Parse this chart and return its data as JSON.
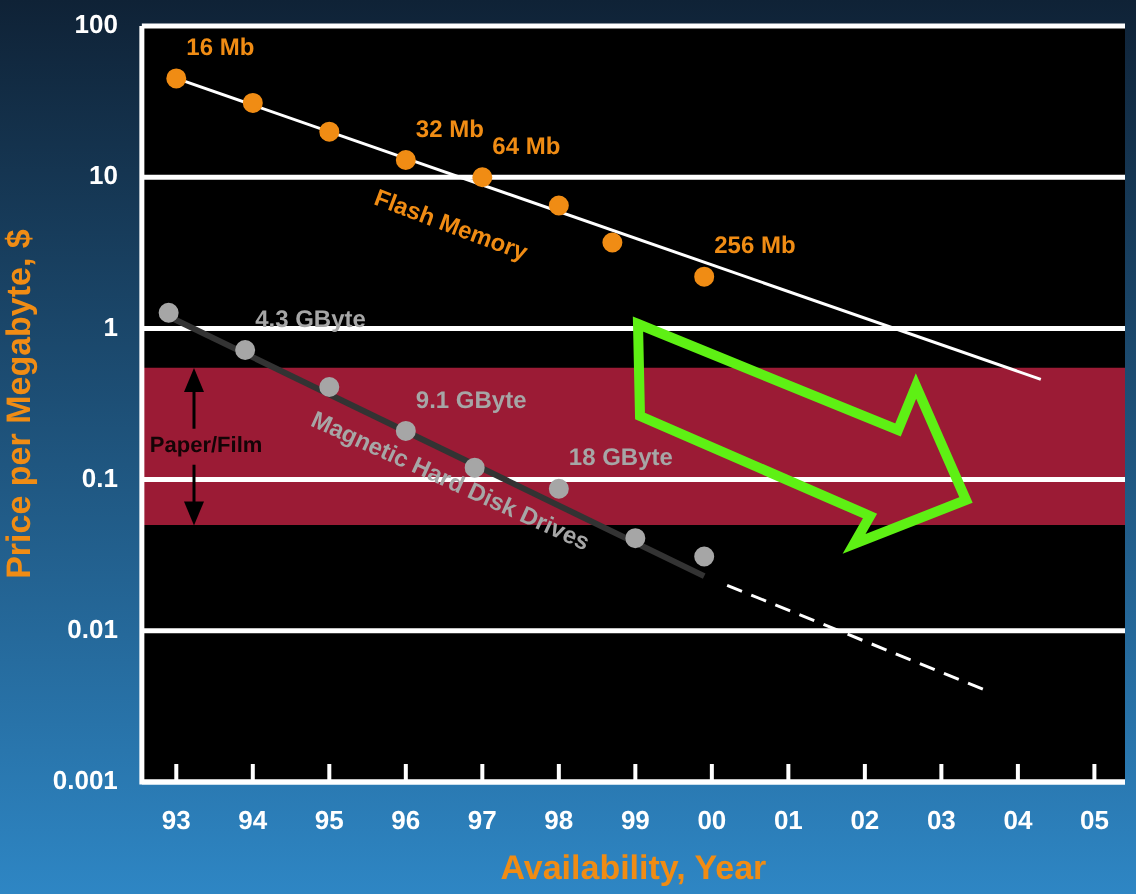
{
  "chart_data": {
    "type": "scatter",
    "xlabel": "Availability, Year",
    "ylabel": "Price per Megabyte, $",
    "log": "y",
    "grid": "y",
    "marker": "circle",
    "xlim": [
      1992.55,
      2005.4
    ],
    "xticks": [
      {
        "value": 1993,
        "label": "93"
      },
      {
        "value": 1994,
        "label": "94"
      },
      {
        "value": 1995,
        "label": "95"
      },
      {
        "value": 1996,
        "label": "96"
      },
      {
        "value": 1997,
        "label": "97"
      },
      {
        "value": 1998,
        "label": "98"
      },
      {
        "value": 1999,
        "label": "99"
      },
      {
        "value": 2000,
        "label": "00"
      },
      {
        "value": 2001,
        "label": "01"
      },
      {
        "value": 2002,
        "label": "02"
      },
      {
        "value": 2003,
        "label": "03"
      },
      {
        "value": 2004,
        "label": "04"
      },
      {
        "value": 2005,
        "label": "05"
      }
    ],
    "ylim": [
      0.001,
      100
    ],
    "yticks": [
      0.001,
      0.01,
      0.1,
      1,
      10,
      100
    ],
    "bands": [
      {
        "axis": "y",
        "from": 0.05,
        "to": 0.55,
        "label": "Paper/Film",
        "color": "#9b1b35"
      }
    ],
    "series": [
      {
        "name": "Flash Memory",
        "color": "#f08c14",
        "x": [
          1993,
          1994,
          1995,
          1996,
          1997,
          1998,
          1998.7,
          1999.9
        ],
        "values": [
          45,
          31,
          20,
          13,
          10,
          6.5,
          3.7,
          2.2
        ]
      },
      {
        "type": "line",
        "marker": "none",
        "color": "#ffffff",
        "x": [
          1993,
          2004.3
        ],
        "values": [
          45,
          0.46
        ]
      },
      {
        "name": "Magnetic Hard Disk Drives",
        "color": "#a6a6a6",
        "x": [
          1992.9,
          1993.9,
          1995,
          1996,
          1996.9,
          1998,
          1999,
          1999.9
        ],
        "values": [
          1.27,
          0.72,
          0.41,
          0.21,
          0.12,
          0.087,
          0.041,
          0.031
        ]
      },
      {
        "type": "line",
        "marker": "none",
        "color": "#333333",
        "x": [
          1992.9,
          1999.9
        ],
        "values": [
          1.2,
          0.023
        ]
      },
      {
        "type": "line",
        "marker": "none",
        "color": "#ffffff",
        "line_style": "dashed",
        "x": [
          2000.2,
          2003.6
        ],
        "values": [
          0.02,
          0.004
        ]
      }
    ],
    "annotations": [
      {
        "text": "16 Mb",
        "x": 1993,
        "y": 45
      },
      {
        "text": "32 Mb",
        "x": 1996,
        "y": 13
      },
      {
        "text": "64 Mb",
        "x": 1997,
        "y": 10
      },
      {
        "text": "256 Mb",
        "x": 1999.9,
        "y": 2.2
      },
      {
        "text": "4.3 GByte",
        "x": 1993.9,
        "y": 0.72
      },
      {
        "text": "9.1 GByte",
        "x": 1996,
        "y": 0.21
      },
      {
        "text": "18 GByte",
        "x": 1998,
        "y": 0.087
      }
    ]
  }
}
